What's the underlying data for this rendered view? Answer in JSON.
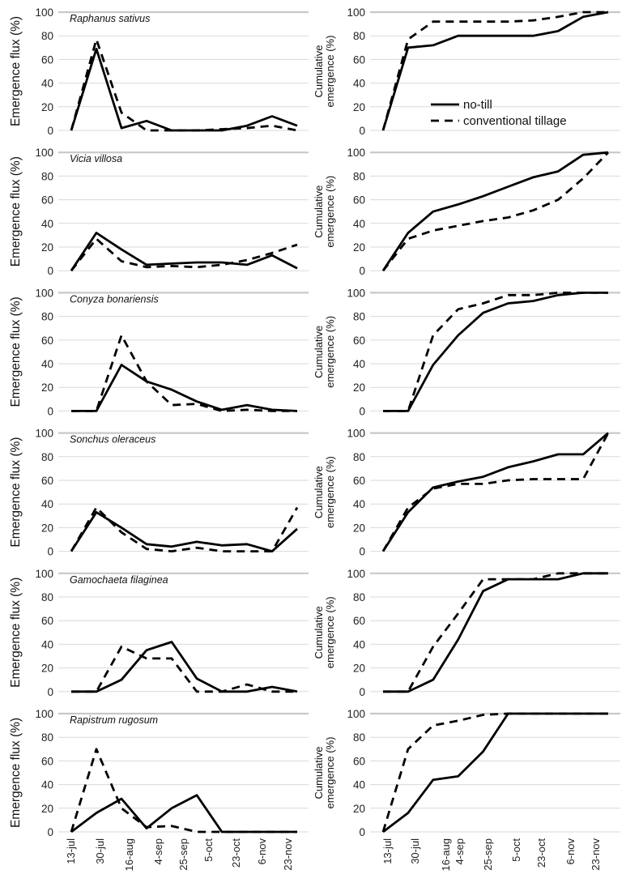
{
  "chart_data": {
    "type": "line",
    "x_tick_labels": [
      "13-jul",
      "30-jul",
      "16-aug",
      "4-sep",
      "25-sep",
      "5-oct",
      "23-oct",
      "6-nov",
      "23-nov"
    ],
    "n_points": 10,
    "legend": {
      "placement": "top-right panel, lower-right",
      "entries": [
        {
          "name": "no-till",
          "style": "solid"
        },
        {
          "name": "conventional tillage",
          "style": "dashed"
        }
      ]
    },
    "left_ylabel": "Emergence flux (%)",
    "right_ylabel_line1": "Cumulative",
    "right_ylabel_line2": "emergence (%)",
    "y_ticks": [
      "0",
      "20",
      "40",
      "60",
      "80",
      "100"
    ],
    "ylim": [
      0,
      100
    ],
    "grid": "horizontal",
    "panels": [
      {
        "species": "Raphanus sativus",
        "flux": {
          "no_till": [
            0,
            69,
            2,
            8,
            0,
            0,
            0,
            4,
            12,
            4
          ],
          "conventional": [
            0,
            77,
            15,
            0,
            0,
            0,
            1,
            2,
            4,
            0
          ]
        },
        "cumulative": {
          "no_till": [
            0,
            70,
            72,
            80,
            80,
            80,
            80,
            84,
            96,
            100
          ],
          "conventional": [
            0,
            77,
            92,
            92,
            92,
            92,
            93,
            96,
            100,
            100
          ]
        }
      },
      {
        "species": "Vicia villosa",
        "flux": {
          "no_till": [
            0,
            32,
            18,
            5,
            6,
            7,
            7,
            5,
            13,
            2
          ],
          "conventional": [
            0,
            27,
            8,
            3,
            4,
            3,
            5,
            9,
            15,
            22
          ]
        },
        "cumulative": {
          "no_till": [
            0,
            32,
            50,
            56,
            63,
            71,
            79,
            84,
            98,
            100
          ],
          "conventional": [
            0,
            27,
            34,
            38,
            42,
            45,
            51,
            60,
            78,
            100
          ]
        }
      },
      {
        "species": "Conyza bonariensis",
        "flux": {
          "no_till": [
            0,
            0,
            39,
            25,
            18,
            8,
            1,
            5,
            1,
            0
          ],
          "conventional": [
            0,
            0,
            64,
            25,
            5,
            6,
            0,
            1,
            0,
            0
          ]
        },
        "cumulative": {
          "no_till": [
            0,
            0,
            39,
            64,
            83,
            91,
            93,
            98,
            100,
            100
          ],
          "conventional": [
            0,
            0,
            64,
            86,
            91,
            98,
            98,
            100,
            100,
            100
          ]
        }
      },
      {
        "species": "Sonchus oleraceus",
        "flux": {
          "no_till": [
            0,
            33,
            20,
            6,
            4,
            8,
            5,
            6,
            0,
            19
          ],
          "conventional": [
            0,
            37,
            16,
            2,
            0,
            3,
            0,
            0,
            0,
            37
          ]
        },
        "cumulative": {
          "no_till": [
            0,
            33,
            54,
            59,
            63,
            71,
            76,
            82,
            82,
            100
          ],
          "conventional": [
            0,
            37,
            53,
            57,
            57,
            60,
            61,
            61,
            61,
            100
          ]
        }
      },
      {
        "species": "Gamochaeta filaginea",
        "flux": {
          "no_till": [
            0,
            0,
            10,
            35,
            42,
            11,
            0,
            0,
            4,
            0
          ],
          "conventional": [
            0,
            0,
            38,
            28,
            28,
            0,
            0,
            6,
            0,
            0
          ]
        },
        "cumulative": {
          "no_till": [
            0,
            0,
            10,
            44,
            85,
            95,
            95,
            95,
            100,
            100
          ],
          "conventional": [
            0,
            0,
            38,
            66,
            95,
            95,
            95,
            100,
            100,
            100
          ]
        }
      },
      {
        "species": "Rapistrum rugosum",
        "flux": {
          "no_till": [
            0,
            16,
            28,
            3,
            20,
            31,
            0,
            0,
            0,
            0
          ],
          "conventional": [
            0,
            70,
            20,
            4,
            5,
            0,
            0,
            0,
            0,
            0
          ]
        },
        "cumulative": {
          "no_till": [
            0,
            16,
            44,
            47,
            68,
            100,
            100,
            100,
            100,
            100
          ],
          "conventional": [
            0,
            70,
            90,
            94,
            99,
            100,
            100,
            100,
            100,
            100
          ]
        }
      }
    ]
  }
}
